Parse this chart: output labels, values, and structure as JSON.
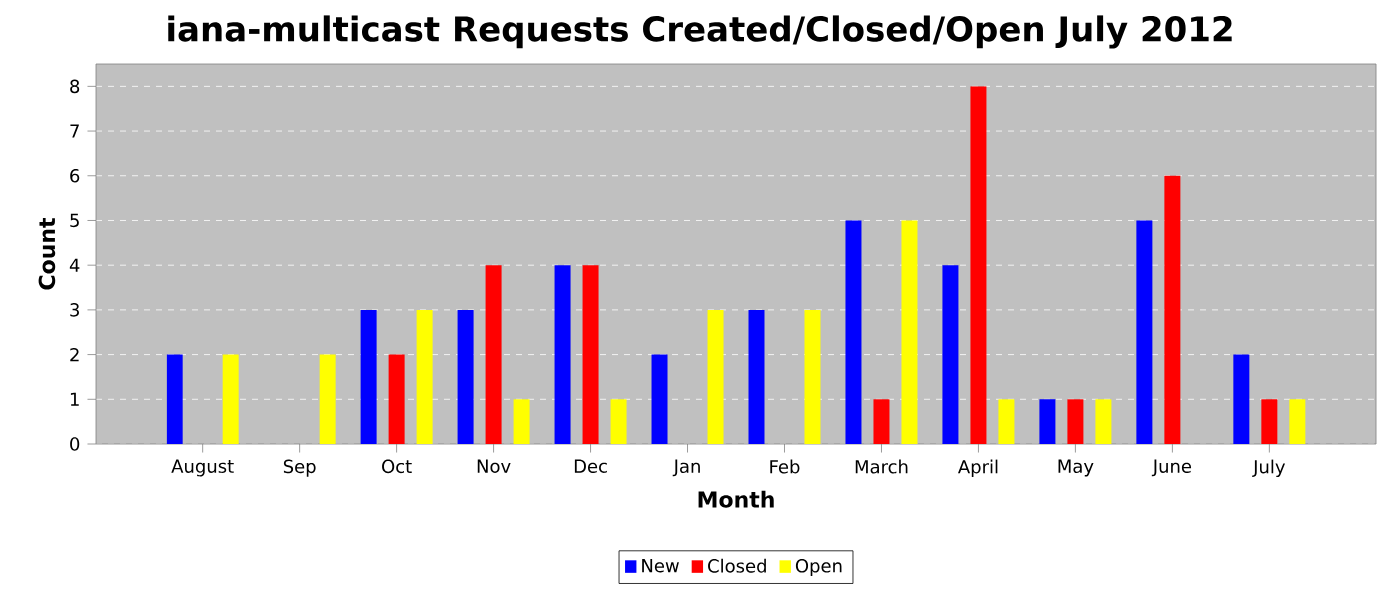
{
  "chart_data": {
    "type": "bar",
    "title": "iana-multicast Requests Created/Closed/Open July 2012",
    "xlabel": "Month",
    "ylabel": "Count",
    "categories": [
      "August",
      "Sep",
      "Oct",
      "Nov",
      "Dec",
      "Jan",
      "Feb",
      "March",
      "April",
      "May",
      "June",
      "July"
    ],
    "series": [
      {
        "name": "New",
        "color": "#0000ff",
        "values": [
          2,
          0,
          3,
          3,
          4,
          2,
          3,
          5,
          4,
          1,
          5,
          2
        ]
      },
      {
        "name": "Closed",
        "color": "#ff0000",
        "values": [
          0,
          0,
          2,
          4,
          4,
          0,
          0,
          1,
          8,
          1,
          6,
          1
        ]
      },
      {
        "name": "Open",
        "color": "#ffff00",
        "values": [
          2,
          2,
          3,
          1,
          1,
          3,
          3,
          5,
          1,
          1,
          0,
          1
        ]
      }
    ],
    "ylim": [
      0,
      8.5
    ],
    "yticks": [
      0,
      1,
      2,
      3,
      4,
      5,
      6,
      7,
      8
    ],
    "grid": "y",
    "legend": "bottom"
  }
}
